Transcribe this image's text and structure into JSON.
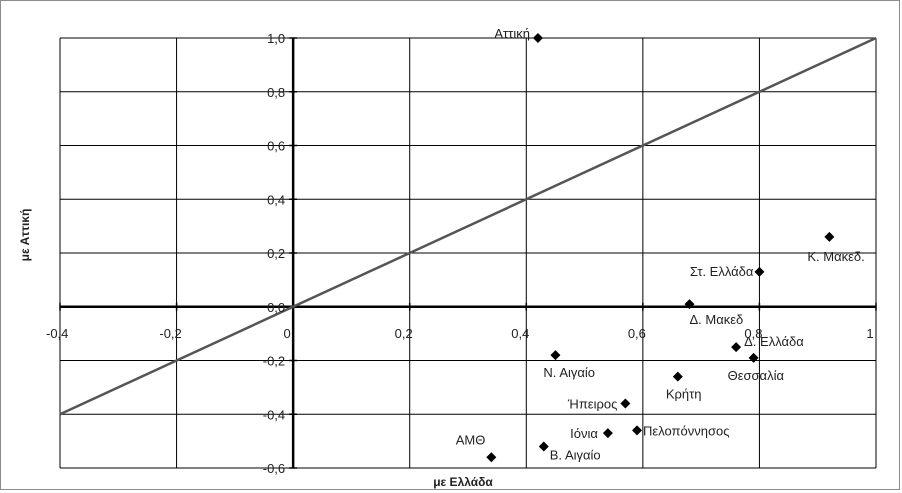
{
  "chart_data": {
    "type": "scatter",
    "title": "",
    "xlabel": "με Ελλάδα",
    "ylabel": "με Αττική",
    "xlim": [
      -0.4,
      1.0
    ],
    "ylim": [
      -0.6,
      1.0
    ],
    "x_ticks": [
      "-0,4",
      "-0,2",
      "0",
      "0,2",
      "0,4",
      "0,6",
      "0,8",
      "1"
    ],
    "y_ticks": [
      "1,0",
      "0,8",
      "0,6",
      "0,4",
      "0,2",
      "0,0",
      "-0,2",
      "-0,4",
      "-0,6"
    ],
    "grid": true,
    "reference_line": {
      "x": [
        -0.4,
        1.0
      ],
      "y": [
        -0.4,
        1.0
      ]
    },
    "points": [
      {
        "label": "Αττική",
        "x": 0.42,
        "y": 1.0
      },
      {
        "label": "Κ. Μακεδ.",
        "x": 0.92,
        "y": 0.26
      },
      {
        "label": "Στ. Ελλάδα",
        "x": 0.8,
        "y": 0.13
      },
      {
        "label": "Δ. Μακεδ",
        "x": 0.68,
        "y": 0.01
      },
      {
        "label": "Δ. Ελλάδα",
        "x": 0.76,
        "y": -0.15
      },
      {
        "label": "Θεσσαλία",
        "x": 0.79,
        "y": -0.19
      },
      {
        "label": "Ν. Αιγαίο",
        "x": 0.45,
        "y": -0.18
      },
      {
        "label": "Κρήτη",
        "x": 0.66,
        "y": -0.26
      },
      {
        "label": "Ήπειρος",
        "x": 0.57,
        "y": -0.36
      },
      {
        "label": "Ιόνια",
        "x": 0.54,
        "y": -0.47
      },
      {
        "label": "Πελοπόννησος",
        "x": 0.59,
        "y": -0.46
      },
      {
        "label": "Β. Αιγαίο",
        "x": 0.43,
        "y": -0.52
      },
      {
        "label": "ΑΜΘ",
        "x": 0.34,
        "y": -0.56
      }
    ]
  }
}
